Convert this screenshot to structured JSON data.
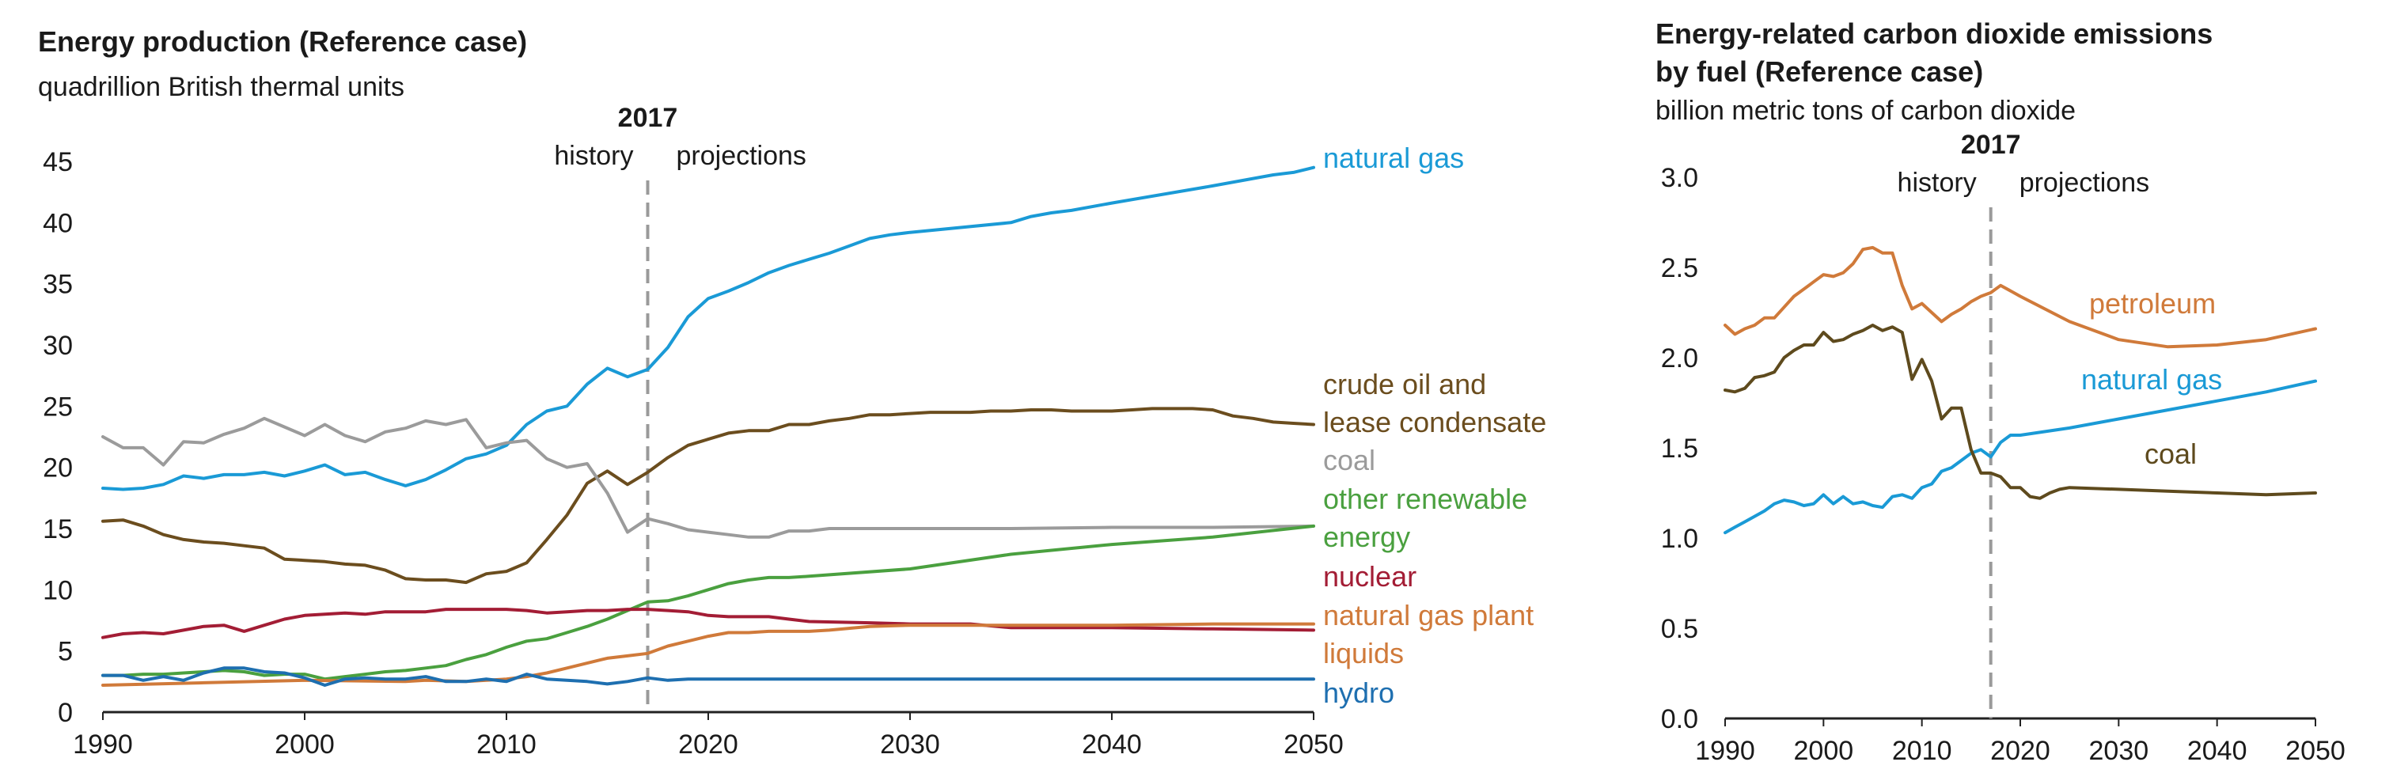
{
  "chart_data": [
    {
      "type": "line",
      "title": "Energy production (Reference case)",
      "subtitle": "quadrillion British thermal units",
      "xlim": [
        1990,
        2050
      ],
      "ylim": [
        0,
        45
      ],
      "xticks": [
        1990,
        2000,
        2010,
        2020,
        2030,
        2040,
        2050
      ],
      "yticks": [
        0,
        5,
        10,
        15,
        20,
        25,
        30,
        35,
        40,
        45
      ],
      "grid": false,
      "divider": {
        "year": 2017,
        "label": "2017",
        "left_label": "history",
        "right_label": "projections"
      },
      "series": [
        {
          "name": "natural gas",
          "color": "#1a9ad6",
          "label_lines": [
            "natural gas"
          ],
          "x": [
            1990,
            1991,
            1992,
            1993,
            1994,
            1995,
            1996,
            1997,
            1998,
            1999,
            2000,
            2001,
            2002,
            2003,
            2004,
            2005,
            2006,
            2007,
            2008,
            2009,
            2010,
            2011,
            2012,
            2013,
            2014,
            2015,
            2016,
            2017,
            2018,
            2019,
            2020,
            2021,
            2022,
            2023,
            2024,
            2025,
            2026,
            2027,
            2028,
            2029,
            2030,
            2035,
            2036,
            2037,
            2038,
            2040,
            2045,
            2048,
            2049,
            2050
          ],
          "y": [
            18.3,
            18.2,
            18.3,
            18.6,
            19.3,
            19.1,
            19.4,
            19.4,
            19.6,
            19.3,
            19.7,
            20.2,
            19.4,
            19.6,
            19.0,
            18.5,
            19.0,
            19.8,
            20.7,
            21.1,
            21.8,
            23.5,
            24.6,
            25.0,
            26.8,
            28.1,
            27.4,
            28.0,
            29.8,
            32.3,
            33.8,
            34.4,
            35.1,
            35.9,
            36.5,
            37.0,
            37.5,
            38.1,
            38.7,
            39.0,
            39.2,
            40.0,
            40.5,
            40.8,
            41.0,
            41.6,
            43.0,
            43.9,
            44.1,
            44.5
          ]
        },
        {
          "name": "crude oil and lease condensate",
          "color": "#6b4d1e",
          "label_lines": [
            "crude oil and",
            "lease condensate"
          ],
          "x": [
            1990,
            1991,
            1992,
            1993,
            1994,
            1995,
            1996,
            1997,
            1998,
            1999,
            2000,
            2001,
            2002,
            2003,
            2004,
            2005,
            2006,
            2007,
            2008,
            2009,
            2010,
            2011,
            2012,
            2013,
            2014,
            2015,
            2016,
            2017,
            2018,
            2019,
            2020,
            2021,
            2022,
            2023,
            2024,
            2025,
            2026,
            2027,
            2028,
            2029,
            2030,
            2031,
            2032,
            2033,
            2034,
            2035,
            2036,
            2037,
            2038,
            2039,
            2040,
            2041,
            2042,
            2043,
            2044,
            2045,
            2046,
            2047,
            2048,
            2049,
            2050
          ],
          "y": [
            15.6,
            15.7,
            15.2,
            14.5,
            14.1,
            13.9,
            13.8,
            13.6,
            13.4,
            12.5,
            12.4,
            12.3,
            12.1,
            12.0,
            11.6,
            10.9,
            10.8,
            10.8,
            10.6,
            11.3,
            11.5,
            12.2,
            14.1,
            16.1,
            18.7,
            19.7,
            18.6,
            19.6,
            20.8,
            21.8,
            22.3,
            22.8,
            23.0,
            23.0,
            23.5,
            23.5,
            23.8,
            24.0,
            24.3,
            24.3,
            24.4,
            24.5,
            24.5,
            24.5,
            24.6,
            24.6,
            24.7,
            24.7,
            24.6,
            24.6,
            24.6,
            24.7,
            24.8,
            24.8,
            24.8,
            24.7,
            24.2,
            24.0,
            23.7,
            23.6,
            23.5
          ]
        },
        {
          "name": "coal",
          "color": "#9b9b9b",
          "label_lines": [
            "coal"
          ],
          "x": [
            1990,
            1991,
            1992,
            1993,
            1994,
            1995,
            1996,
            1997,
            1998,
            1999,
            2000,
            2001,
            2002,
            2003,
            2004,
            2005,
            2006,
            2007,
            2008,
            2009,
            2010,
            2011,
            2012,
            2013,
            2014,
            2015,
            2016,
            2017,
            2018,
            2019,
            2020,
            2021,
            2022,
            2023,
            2024,
            2025,
            2026,
            2030,
            2035,
            2040,
            2045,
            2050
          ],
          "y": [
            22.5,
            21.6,
            21.6,
            20.2,
            22.1,
            22.0,
            22.7,
            23.2,
            24.0,
            23.3,
            22.6,
            23.5,
            22.6,
            22.1,
            22.9,
            23.2,
            23.8,
            23.5,
            23.9,
            21.6,
            22.0,
            22.2,
            20.7,
            20.0,
            20.3,
            17.9,
            14.7,
            15.8,
            15.4,
            14.9,
            14.7,
            14.5,
            14.3,
            14.3,
            14.8,
            14.8,
            15.0,
            15.0,
            15.0,
            15.1,
            15.1,
            15.2
          ]
        },
        {
          "name": "other renewable energy",
          "color": "#4aa03f",
          "label_lines": [
            "other renewable",
            "energy"
          ],
          "x": [
            1990,
            1991,
            1992,
            1993,
            1994,
            1995,
            1996,
            1997,
            1998,
            1999,
            2000,
            2001,
            2002,
            2003,
            2004,
            2005,
            2006,
            2007,
            2008,
            2009,
            2010,
            2011,
            2012,
            2013,
            2014,
            2015,
            2016,
            2017,
            2018,
            2019,
            2020,
            2021,
            2022,
            2023,
            2024,
            2025,
            2030,
            2035,
            2040,
            2045,
            2050
          ],
          "y": [
            3.0,
            3.0,
            3.1,
            3.1,
            3.2,
            3.3,
            3.4,
            3.3,
            3.0,
            3.1,
            3.1,
            2.7,
            2.9,
            3.1,
            3.3,
            3.4,
            3.6,
            3.8,
            4.3,
            4.7,
            5.3,
            5.8,
            6.0,
            6.5,
            7.0,
            7.6,
            8.3,
            9.0,
            9.1,
            9.5,
            10.0,
            10.5,
            10.8,
            11.0,
            11.0,
            11.1,
            11.7,
            12.9,
            13.7,
            14.3,
            15.2
          ]
        },
        {
          "name": "nuclear",
          "color": "#a31d35",
          "label_lines": [
            "nuclear"
          ],
          "x": [
            1990,
            1991,
            1992,
            1993,
            1994,
            1995,
            1996,
            1997,
            1998,
            1999,
            2000,
            2001,
            2002,
            2003,
            2004,
            2005,
            2006,
            2007,
            2008,
            2009,
            2010,
            2011,
            2012,
            2013,
            2014,
            2015,
            2016,
            2017,
            2018,
            2019,
            2020,
            2021,
            2022,
            2023,
            2024,
            2025,
            2028,
            2030,
            2033,
            2035,
            2040,
            2045,
            2050
          ],
          "y": [
            6.1,
            6.4,
            6.5,
            6.4,
            6.7,
            7.0,
            7.1,
            6.6,
            7.1,
            7.6,
            7.9,
            8.0,
            8.1,
            8.0,
            8.2,
            8.2,
            8.2,
            8.4,
            8.4,
            8.4,
            8.4,
            8.3,
            8.1,
            8.2,
            8.3,
            8.3,
            8.4,
            8.4,
            8.3,
            8.2,
            7.9,
            7.8,
            7.8,
            7.8,
            7.6,
            7.4,
            7.3,
            7.2,
            7.2,
            6.9,
            6.9,
            6.8,
            6.7
          ]
        },
        {
          "name": "natural gas plant liquids",
          "color": "#d07a3a",
          "label_lines": [
            "natural gas plant",
            "liquids"
          ],
          "x": [
            1990,
            1995,
            2000,
            2005,
            2006,
            2008,
            2010,
            2011,
            2012,
            2013,
            2014,
            2015,
            2016,
            2017,
            2018,
            2019,
            2020,
            2021,
            2022,
            2023,
            2024,
            2025,
            2026,
            2028,
            2030,
            2035,
            2040,
            2045,
            2050
          ],
          "y": [
            2.2,
            2.4,
            2.6,
            2.5,
            2.6,
            2.5,
            2.7,
            2.9,
            3.2,
            3.6,
            4.0,
            4.4,
            4.6,
            4.8,
            5.4,
            5.8,
            6.2,
            6.5,
            6.5,
            6.6,
            6.6,
            6.6,
            6.7,
            7.0,
            7.1,
            7.1,
            7.1,
            7.2,
            7.2
          ]
        },
        {
          "name": "hydro",
          "color": "#1e6fb0",
          "label_lines": [
            "hydro"
          ],
          "x": [
            1990,
            1991,
            1992,
            1993,
            1994,
            1995,
            1996,
            1997,
            1998,
            1999,
            2000,
            2001,
            2002,
            2003,
            2004,
            2005,
            2006,
            2007,
            2008,
            2009,
            2010,
            2011,
            2012,
            2013,
            2014,
            2015,
            2016,
            2017,
            2018,
            2019,
            2020,
            2025,
            2030,
            2035,
            2040,
            2045,
            2050
          ],
          "y": [
            3.0,
            3.0,
            2.6,
            2.9,
            2.6,
            3.2,
            3.6,
            3.6,
            3.3,
            3.2,
            2.8,
            2.2,
            2.7,
            2.8,
            2.7,
            2.7,
            2.9,
            2.5,
            2.5,
            2.7,
            2.5,
            3.1,
            2.7,
            2.6,
            2.5,
            2.3,
            2.5,
            2.8,
            2.6,
            2.7,
            2.7,
            2.7,
            2.7,
            2.7,
            2.7,
            2.7,
            2.7
          ]
        }
      ]
    },
    {
      "type": "line",
      "title": "Energy-related carbon dioxide emissions by fuel (Reference case)",
      "title_lines": [
        "Energy-related carbon dioxide emissions",
        "by fuel (Reference case)"
      ],
      "subtitle": "billion metric tons of carbon dioxide",
      "xlim": [
        1990,
        2050
      ],
      "ylim": [
        0,
        3
      ],
      "xticks": [
        1990,
        2000,
        2010,
        2020,
        2030,
        2040,
        2050
      ],
      "yticks": [
        "0.0",
        "0.5",
        "1.0",
        "1.5",
        "2.0",
        "2.5",
        "3.0"
      ],
      "grid": false,
      "divider": {
        "year": 2017,
        "label": "2017",
        "left_label": "history",
        "right_label": "projections"
      },
      "series": [
        {
          "name": "petroleum",
          "color": "#d07a3a",
          "label_lines": [
            "petroleum"
          ],
          "x": [
            1990,
            1991,
            1992,
            1993,
            1994,
            1995,
            1996,
            1997,
            1998,
            1999,
            2000,
            2001,
            2002,
            2003,
            2004,
            2005,
            2006,
            2007,
            2008,
            2009,
            2010,
            2011,
            2012,
            2013,
            2014,
            2015,
            2016,
            2017,
            2018,
            2019,
            2020,
            2025,
            2030,
            2035,
            2040,
            2045,
            2050
          ],
          "y": [
            2.18,
            2.13,
            2.16,
            2.18,
            2.22,
            2.22,
            2.28,
            2.34,
            2.38,
            2.42,
            2.46,
            2.45,
            2.47,
            2.52,
            2.6,
            2.61,
            2.58,
            2.58,
            2.4,
            2.27,
            2.3,
            2.25,
            2.2,
            2.24,
            2.27,
            2.31,
            2.34,
            2.36,
            2.4,
            2.37,
            2.34,
            2.2,
            2.1,
            2.06,
            2.07,
            2.1,
            2.16
          ]
        },
        {
          "name": "natural gas",
          "color": "#1a9ad6",
          "label_lines": [
            "natural gas"
          ],
          "x": [
            1990,
            1991,
            1992,
            1993,
            1994,
            1995,
            1996,
            1997,
            1998,
            1999,
            2000,
            2001,
            2002,
            2003,
            2004,
            2005,
            2006,
            2007,
            2008,
            2009,
            2010,
            2011,
            2012,
            2013,
            2014,
            2015,
            2016,
            2017,
            2018,
            2019,
            2020,
            2025,
            2030,
            2035,
            2040,
            2045,
            2050
          ],
          "y": [
            1.03,
            1.06,
            1.09,
            1.12,
            1.15,
            1.19,
            1.21,
            1.2,
            1.18,
            1.19,
            1.24,
            1.19,
            1.23,
            1.19,
            1.2,
            1.18,
            1.17,
            1.23,
            1.24,
            1.22,
            1.28,
            1.3,
            1.37,
            1.39,
            1.43,
            1.47,
            1.49,
            1.45,
            1.53,
            1.57,
            1.57,
            1.61,
            1.66,
            1.71,
            1.76,
            1.81,
            1.87
          ]
        },
        {
          "name": "coal",
          "color": "#5e4a1d",
          "label_lines": [
            "coal"
          ],
          "x": [
            1990,
            1991,
            1992,
            1993,
            1994,
            1995,
            1996,
            1997,
            1998,
            1999,
            2000,
            2001,
            2002,
            2003,
            2004,
            2005,
            2006,
            2007,
            2008,
            2009,
            2010,
            2011,
            2012,
            2013,
            2014,
            2015,
            2016,
            2017,
            2018,
            2019,
            2020,
            2021,
            2022,
            2023,
            2024,
            2025,
            2030,
            2035,
            2040,
            2045,
            2050
          ],
          "y": [
            1.82,
            1.81,
            1.83,
            1.89,
            1.9,
            1.92,
            2.0,
            2.04,
            2.07,
            2.07,
            2.14,
            2.09,
            2.1,
            2.13,
            2.15,
            2.18,
            2.15,
            2.17,
            2.14,
            1.88,
            1.99,
            1.87,
            1.66,
            1.72,
            1.72,
            1.49,
            1.36,
            1.36,
            1.34,
            1.28,
            1.28,
            1.23,
            1.22,
            1.25,
            1.27,
            1.28,
            1.27,
            1.26,
            1.25,
            1.24,
            1.25
          ]
        }
      ]
    }
  ]
}
